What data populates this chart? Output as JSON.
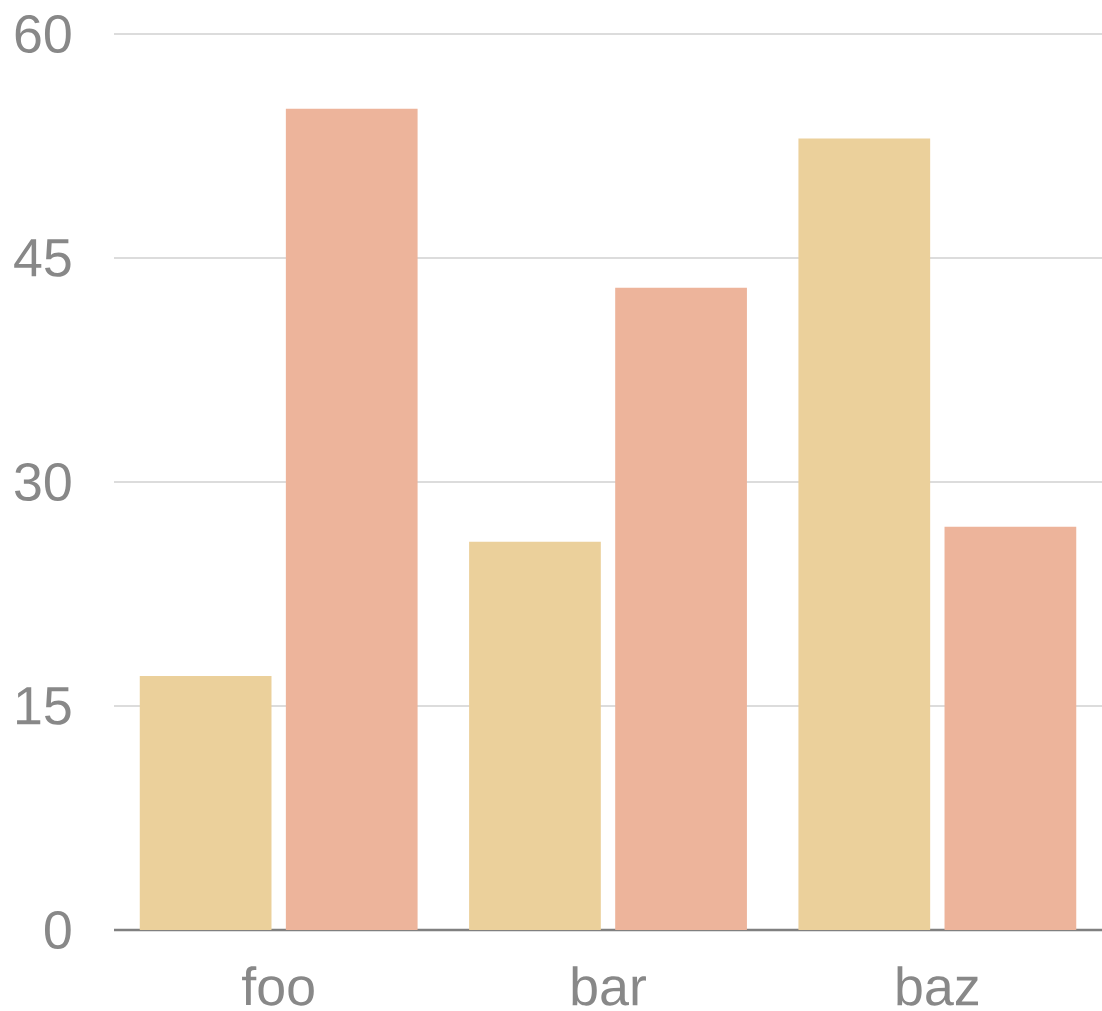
{
  "chart_data": {
    "type": "bar",
    "categories": [
      "foo",
      "bar",
      "baz"
    ],
    "series": [
      {
        "color": "#ebd09b",
        "values": [
          17,
          26,
          53
        ]
      },
      {
        "color": "#edb49b",
        "values": [
          55,
          43,
          27
        ]
      }
    ],
    "ylim": [
      0,
      60
    ],
    "yticks": [
      0,
      15,
      30,
      45,
      60
    ],
    "grid": "y"
  }
}
